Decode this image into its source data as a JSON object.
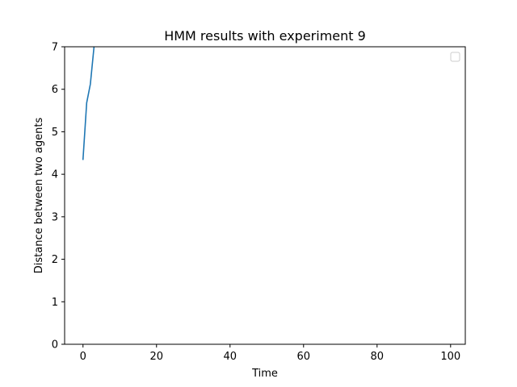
{
  "chart_data": {
    "type": "line",
    "title": "HMM results with experiment 9",
    "xlabel": "Time",
    "ylabel": "Distance between two agents",
    "xlim": [
      -5,
      104
    ],
    "ylim": [
      0,
      7
    ],
    "xticks": [
      0,
      20,
      40,
      60,
      80,
      100
    ],
    "yticks": [
      0,
      1,
      2,
      3,
      4,
      5,
      6,
      7
    ],
    "grid": false,
    "legend": {
      "placement": "top-right",
      "entries": []
    },
    "series": [
      {
        "color": "#1f77b4",
        "x": [
          0,
          1,
          2,
          3
        ],
        "y": [
          4.35,
          5.68,
          6.12,
          7.0
        ]
      }
    ]
  }
}
